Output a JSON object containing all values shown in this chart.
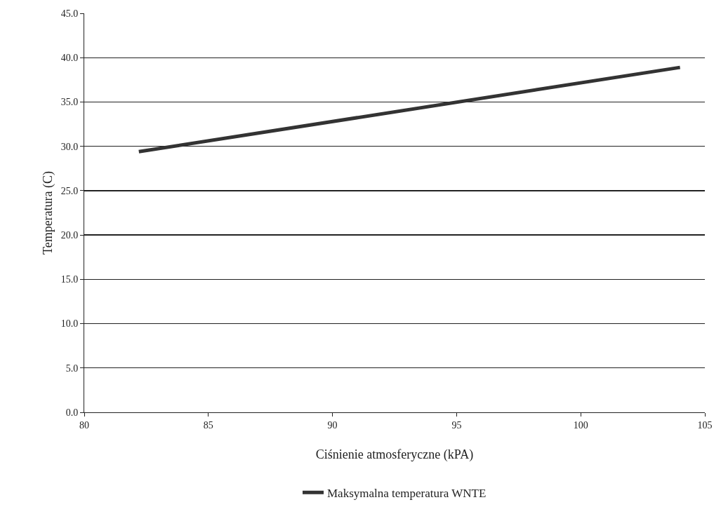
{
  "chart_data": {
    "type": "line",
    "xlabel": "Ciśnienie atmosferyczne (kPA)",
    "ylabel": "Temperatura (C)",
    "series": [
      {
        "name": "Maksymalna temperatura WNTE",
        "color": "#333333",
        "x": [
          82.2,
          104
        ],
        "values": [
          29.4,
          38.9
        ]
      }
    ],
    "xlim": [
      80,
      105
    ],
    "xticks": [
      80,
      85,
      90,
      95,
      100,
      105
    ],
    "ylim": [
      0,
      45
    ],
    "yticks": [
      {
        "value": 0,
        "label": "0.0"
      },
      {
        "value": 5,
        "label": "5.0"
      },
      {
        "value": 10,
        "label": "10.0"
      },
      {
        "value": 15,
        "label": "15.0"
      },
      {
        "value": 20,
        "label": "20.0"
      },
      {
        "value": 25,
        "label": "25.0"
      },
      {
        "value": 30,
        "label": "30.0"
      },
      {
        "value": 35,
        "label": "35.0"
      },
      {
        "value": 40,
        "label": "40.0"
      },
      {
        "value": 45,
        "label": "45.0"
      }
    ],
    "grid": "y",
    "legend": "bottom",
    "marker": "none",
    "line_style": "solid"
  }
}
